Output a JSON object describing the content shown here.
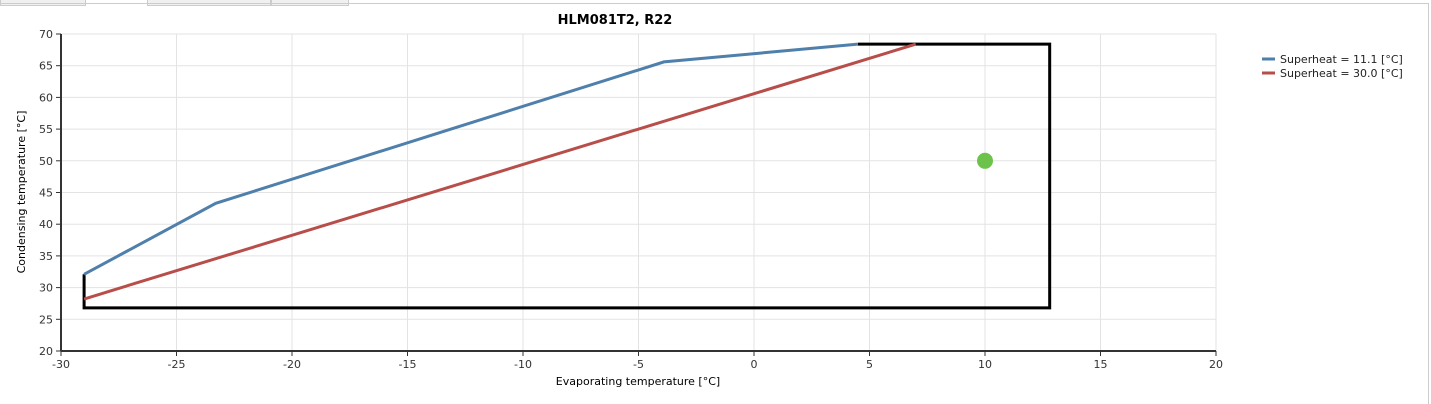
{
  "chart_data": {
    "type": "line",
    "title": "HLM081T2, R22",
    "xlabel": "Evaporating temperature [°C]",
    "ylabel": "Condensing temperature [°C]",
    "xlim": [
      -30,
      20
    ],
    "ylim": [
      20,
      70
    ],
    "xticks": [
      -30,
      -25,
      -20,
      -15,
      -10,
      -5,
      0,
      5,
      10,
      15,
      20
    ],
    "yticks": [
      20,
      25,
      30,
      35,
      40,
      45,
      50,
      55,
      60,
      65,
      70
    ],
    "grid": true,
    "legend_position": "right",
    "series": [
      {
        "name": "Superheat = 11.1 [°C]",
        "color": "#4f7fab",
        "x": [
          -29,
          -23.3,
          -3.9,
          4.5
        ],
        "y": [
          32.1,
          43.3,
          65.6,
          68.4
        ]
      },
      {
        "name": "Superheat = 30.0 [°C]",
        "color": "#b84e4a",
        "x": [
          -29,
          7.0
        ],
        "y": [
          28.2,
          68.4
        ]
      }
    ],
    "envelope": {
      "color": "#000000",
      "x": [
        4.5,
        12.8,
        12.8,
        -29,
        -29
      ],
      "y": [
        68.4,
        68.4,
        26.8,
        26.8,
        32.1
      ]
    },
    "operating_point": {
      "color": "#6cc24a",
      "x": 10,
      "y": 50
    }
  }
}
